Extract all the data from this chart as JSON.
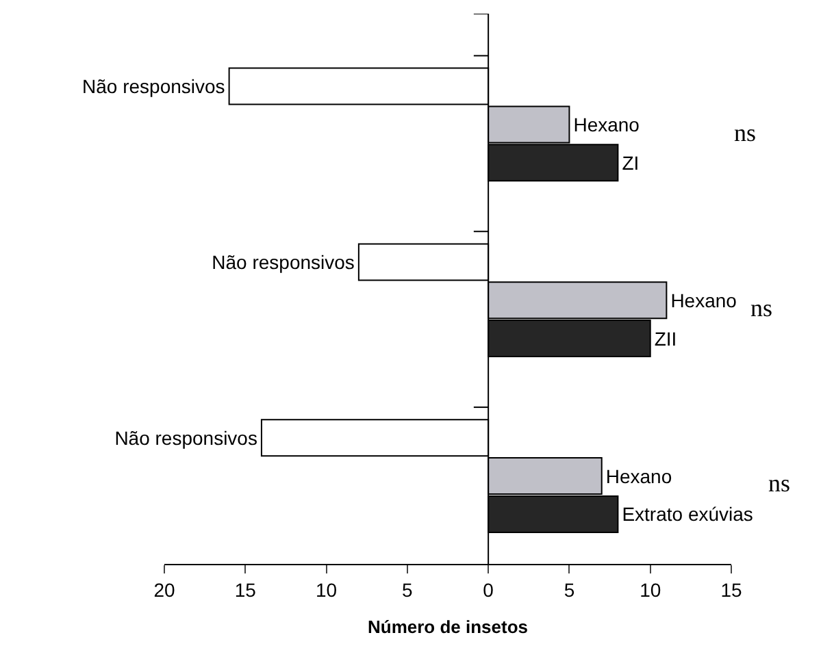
{
  "chart_data": {
    "type": "bar",
    "orientation": "horizontal",
    "xlabel": "Número de insetos",
    "categories": [
      "Não responsivos",
      "Hexano",
      "ZI",
      "Não responsivos",
      "Hexano",
      "ZII",
      "Não responsivos",
      "Hexano",
      "Extrato exúvias"
    ],
    "values": [
      -16,
      5,
      8,
      -8,
      11,
      10,
      -14,
      7,
      8
    ],
    "colors": [
      "#ffffff",
      "#c0c0c8",
      "#262626",
      "#ffffff",
      "#c0c0c8",
      "#262626",
      "#ffffff",
      "#c0c0c8",
      "#262626"
    ],
    "xlim": [
      -20,
      15
    ],
    "xticks": [
      {
        "value": -20,
        "label": "20"
      },
      {
        "value": -15,
        "label": "15"
      },
      {
        "value": -10,
        "label": "10"
      },
      {
        "value": -5,
        "label": "5"
      },
      0,
      5,
      10,
      15
    ],
    "annotations": [
      "ns",
      "ns",
      "ns"
    ],
    "legend": false
  }
}
